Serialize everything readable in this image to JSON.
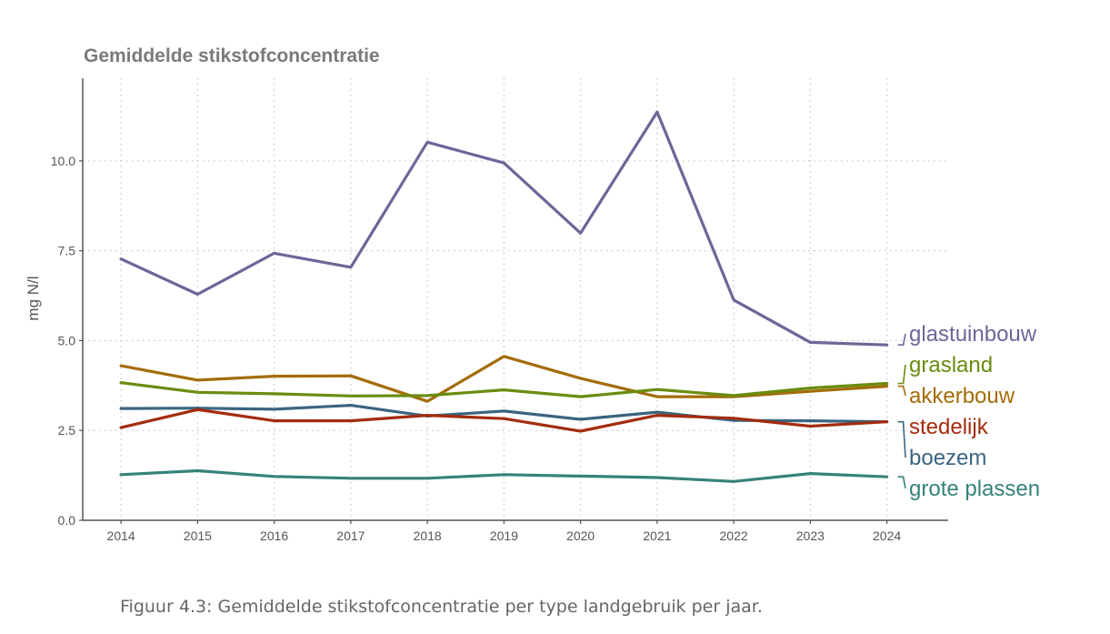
{
  "caption": "Figuur 4.3: Gemiddelde stikstofconcentratie per type landgebruik per jaar.",
  "chart_data": {
    "type": "line",
    "title": "Gemiddelde stikstofconcentratie",
    "xlabel": "",
    "ylabel": "mg N/l",
    "x": [
      2014,
      2015,
      2016,
      2017,
      2018,
      2019,
      2020,
      2021,
      2022,
      2023,
      2024
    ],
    "xlim": [
      2013.5,
      2024.8
    ],
    "ylim": [
      0,
      12.3
    ],
    "yticks": [
      0,
      2.5,
      5,
      7.5,
      10
    ],
    "ytick_labels": [
      "0.0",
      "2.5",
      "5.0",
      "7.5",
      "10.0"
    ],
    "grid": true,
    "legend": "direct labels at right end of lines",
    "series": [
      {
        "name": "glastuinbouw",
        "color": "#6e6699",
        "values": [
          7.27,
          6.29,
          7.43,
          7.04,
          10.52,
          9.94,
          7.99,
          11.36,
          6.13,
          4.95,
          4.88
        ]
      },
      {
        "name": "grasland",
        "color": "#6a8c0f",
        "values": [
          3.83,
          3.56,
          3.52,
          3.46,
          3.47,
          3.63,
          3.44,
          3.64,
          3.47,
          3.68,
          3.81
        ]
      },
      {
        "name": "akkerbouw",
        "color": "#a36c07",
        "values": [
          4.3,
          3.9,
          4.01,
          4.02,
          3.31,
          4.56,
          3.95,
          3.44,
          3.44,
          3.59,
          3.73
        ]
      },
      {
        "name": "stedelijk",
        "color": "#a32c0d",
        "values": [
          2.58,
          3.08,
          2.77,
          2.77,
          2.92,
          2.83,
          2.48,
          2.92,
          2.84,
          2.62,
          2.74
        ]
      },
      {
        "name": "boezem",
        "color": "#3a6580",
        "values": [
          3.11,
          3.12,
          3.09,
          3.2,
          2.9,
          3.04,
          2.81,
          3.01,
          2.78,
          2.77,
          2.74
        ]
      },
      {
        "name": "grote plassen",
        "color": "#35837a",
        "values": [
          1.27,
          1.38,
          1.22,
          1.17,
          1.17,
          1.27,
          1.23,
          1.19,
          1.08,
          1.3,
          1.21
        ]
      }
    ]
  }
}
